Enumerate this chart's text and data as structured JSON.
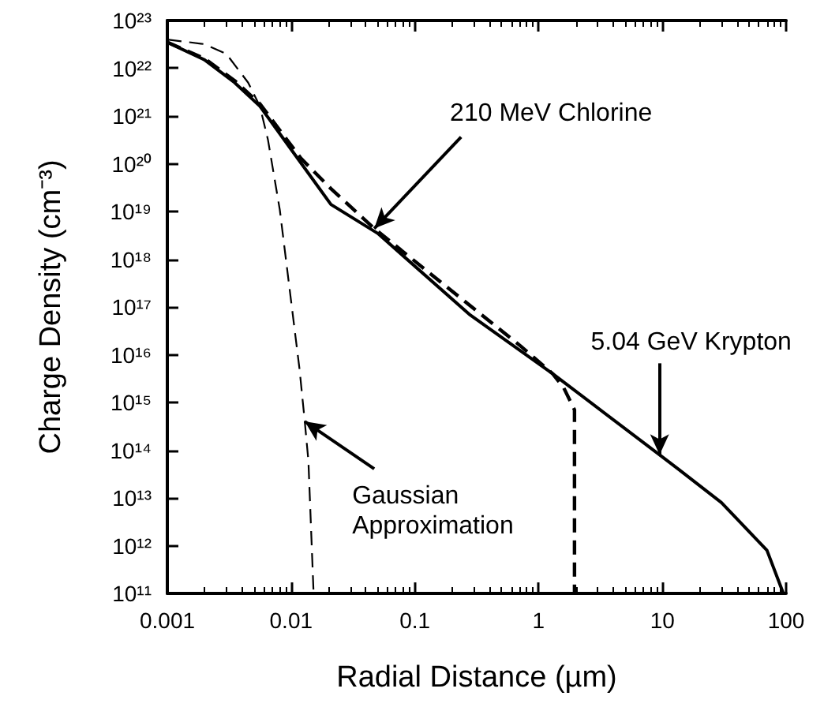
{
  "chart_data": {
    "type": "line",
    "xlabel": "Radial Distance (µm)",
    "ylabel": "Charge Density (cm⁻³)",
    "log": "xy",
    "grid": false,
    "marker": "none",
    "xlim": [
      0.001,
      100
    ],
    "xticks": [
      0.001,
      0.01,
      0.1,
      1,
      10,
      100
    ],
    "ylim": [
      100000000000.0,
      1e+23
    ],
    "yticks": [
      {
        "value": 100000000000.0,
        "label": "10¹¹"
      },
      {
        "value": 1000000000000.0,
        "label": "10¹²"
      },
      {
        "value": 10000000000000.0,
        "label": "10¹³"
      },
      {
        "value": 100000000000000.0,
        "label": "10¹⁴"
      },
      {
        "value": 1000000000000000.0,
        "label": "10¹⁵"
      },
      {
        "value": 1e+16,
        "label": "10¹⁶"
      },
      {
        "value": 1e+17,
        "label": "10¹⁷"
      },
      {
        "value": 1e+18,
        "label": "10¹⁸"
      },
      {
        "value": 1e+19,
        "label": "10¹⁹"
      },
      {
        "value": 1e+20,
        "label": "10²⁰"
      },
      {
        "value": 1e+21,
        "label": "10²¹"
      },
      {
        "value": 1e+22,
        "label": "10²²"
      },
      {
        "value": 1e+23,
        "label": "10²³"
      }
    ],
    "series": [
      {
        "color": "#000000",
        "line_style": "solid",
        "x": [
          0.001,
          0.002,
          0.0035,
          0.0056,
          0.01,
          0.021,
          0.05,
          0.28,
          1.3,
          9.5,
          13.5,
          30,
          70,
          95
        ],
        "values": [
          3.5e+22,
          1.5e+22,
          5e+21,
          1.6e+21,
          2e+20,
          1.4e+19,
          3.5e+18,
          6.8e+16,
          4000000000000000.0,
          80000000000000.0,
          40000000000000.0,
          8000000000000.0,
          800000000000.0,
          100000000000.0
        ]
      },
      {
        "color": "#000000",
        "line_style": "dashed",
        "x": [
          0.001,
          0.002,
          0.0035,
          0.0056,
          0.012,
          0.021,
          0.047,
          0.245,
          0.72,
          1.3,
          1.6,
          1.95,
          1.95
        ],
        "values": [
          3.5e+22,
          1.6e+22,
          5.5e+21,
          1.8e+21,
          1.3e+20,
          3e+19,
          4.4e+18,
          1.4e+17,
          1.5e+16,
          4000000000000000.0,
          2000000000000000.0,
          700000000000000.0,
          100000000000.0
        ]
      },
      {
        "color": "#000000",
        "line_style": "dashed",
        "x": [
          0.001,
          0.002,
          0.003,
          0.0045,
          0.0056,
          0.0065,
          0.0081,
          0.0117,
          0.0129,
          0.0138,
          0.0152
        ],
        "values": [
          4e+22,
          3.2e+22,
          2e+22,
          5e+21,
          1.6e+21,
          3.2e+20,
          1.1e+19,
          5000000000000000.0,
          400000000000000.0,
          60000000000000.0,
          100000000000.0
        ]
      }
    ],
    "annotations": [
      {
        "text": "210 MeV Chlorine",
        "x": 0.047,
        "y": 4.4e+18
      },
      {
        "text": "5.04 GeV Krypton",
        "x": 9.5,
        "y": 80000000000000.0
      },
      {
        "text": "Gaussian Approximation",
        "x": 0.0129,
        "y": 400000000000000.0
      }
    ]
  }
}
